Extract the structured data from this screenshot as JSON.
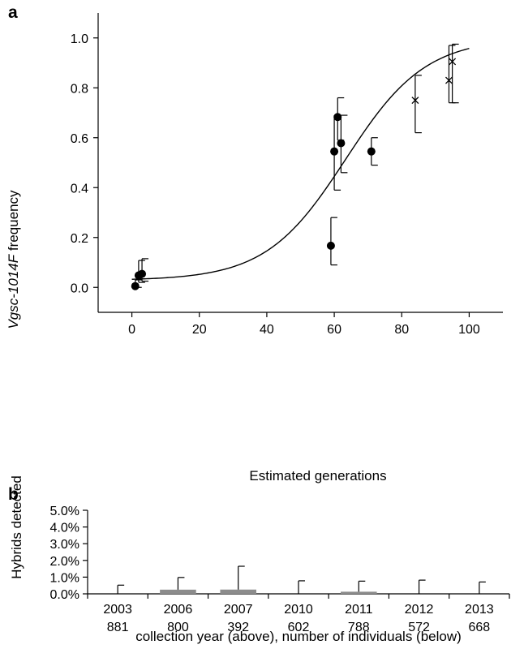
{
  "chart_data": [
    {
      "type": "scatter",
      "panel": "a",
      "xlabel": "Estimated generations",
      "ylabel_italic": "Vgsc-1014F",
      "ylabel_rest": " frequency",
      "xlim": [
        -10,
        110
      ],
      "ylim": [
        -0.1,
        1.1
      ],
      "xticks": [
        0,
        20,
        40,
        60,
        80,
        100
      ],
      "yticks": [
        "0.0",
        "0.2",
        "0.4",
        "0.6",
        "0.8",
        "1.0"
      ],
      "grid": false,
      "series": [
        {
          "marker": "circle",
          "points": [
            {
              "x": 1,
              "y": 0.005,
              "lo": 0.0,
              "hi": 0.03
            },
            {
              "x": 2,
              "y": 0.048,
              "lo": 0.02,
              "hi": 0.108
            },
            {
              "x": 3,
              "y": 0.054,
              "lo": 0.025,
              "hi": 0.115
            },
            {
              "x": 59,
              "y": 0.167,
              "lo": 0.09,
              "hi": 0.28
            },
            {
              "x": 60,
              "y": 0.545,
              "lo": 0.39,
              "hi": 0.69
            },
            {
              "x": 61,
              "y": 0.683,
              "lo": 0.59,
              "hi": 0.76
            },
            {
              "x": 62,
              "y": 0.578,
              "lo": 0.46,
              "hi": 0.69
            },
            {
              "x": 71,
              "y": 0.545,
              "lo": 0.49,
              "hi": 0.6
            }
          ]
        },
        {
          "marker": "cross",
          "points": [
            {
              "x": 84,
              "y": 0.75,
              "lo": 0.62,
              "hi": 0.85
            },
            {
              "x": 94,
              "y": 0.83,
              "lo": 0.74,
              "hi": 0.97
            },
            {
              "x": 95,
              "y": 0.905,
              "lo": 0.74,
              "hi": 0.975
            }
          ]
        }
      ],
      "fit_curve": {
        "type": "logistic",
        "x_range": [
          0,
          100
        ],
        "y0": 0.028,
        "midpoint_x": 63.4,
        "rate": 0.0845
      }
    },
    {
      "type": "bar",
      "panel": "b",
      "ylabel": "Hybrids detected",
      "xlabel": "collection year (above), number of individuals (below)",
      "ylim": [
        0,
        5.0
      ],
      "yticks": [
        "0.0%",
        "1.0%",
        "2.0%",
        "3.0%",
        "4.0%",
        "5.0%"
      ],
      "categories": [
        "2003",
        "2006",
        "2007",
        "2010",
        "2011",
        "2012",
        "2013"
      ],
      "sample_sizes": [
        "881",
        "800",
        "392",
        "602",
        "788",
        "572",
        "668"
      ],
      "values": [
        0.0,
        0.25,
        0.255,
        0.0,
        0.127,
        0.0,
        0.0
      ],
      "upper_error": [
        0.52,
        0.98,
        1.65,
        0.78,
        0.76,
        0.82,
        0.71
      ],
      "bar_color": "#8c8c8c",
      "grid": false
    }
  ]
}
